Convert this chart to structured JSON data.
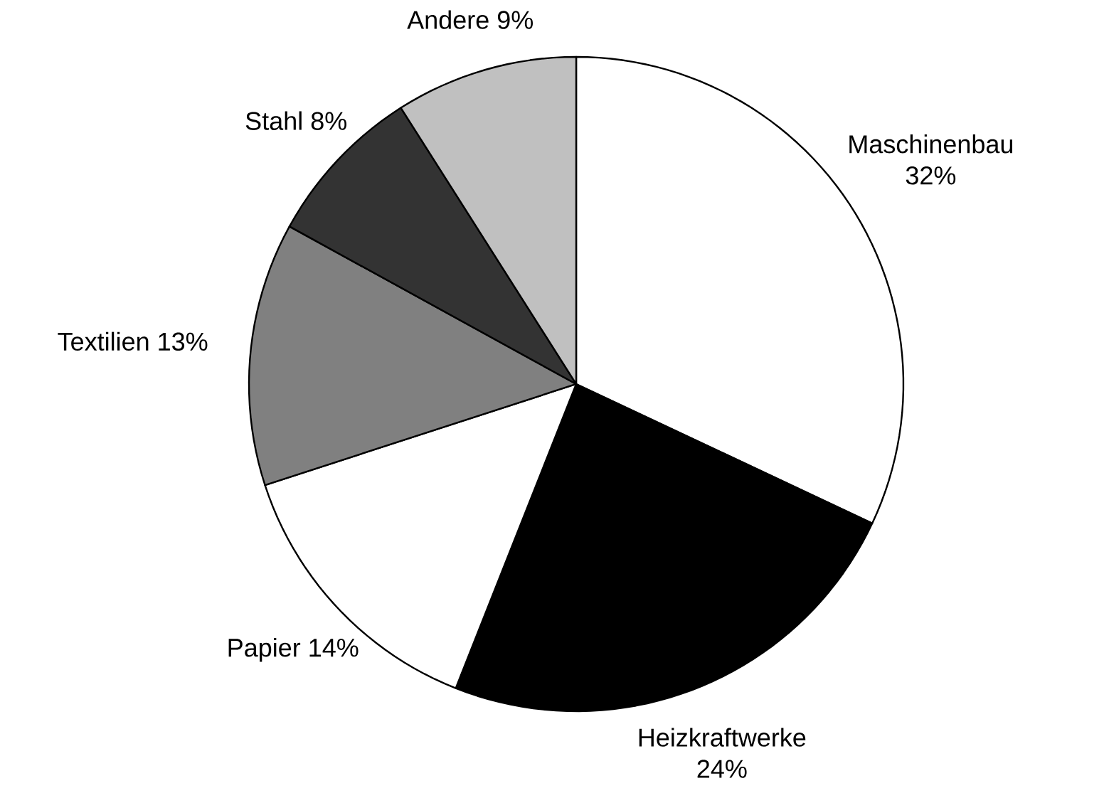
{
  "chart_data": {
    "type": "pie",
    "categories": [
      "Maschinenbau",
      "Heizkraftwerke",
      "Papier",
      "Textilien",
      "Stahl",
      "Andere"
    ],
    "values": [
      32,
      24,
      14,
      13,
      8,
      9
    ],
    "colors": [
      "#ffffff",
      "#000000",
      "#ffffff",
      "#808080",
      "#333333",
      "#c0c0c0"
    ],
    "value_labels": [
      "32%",
      "24%",
      "14%",
      "13%",
      "8%",
      "9%"
    ]
  }
}
